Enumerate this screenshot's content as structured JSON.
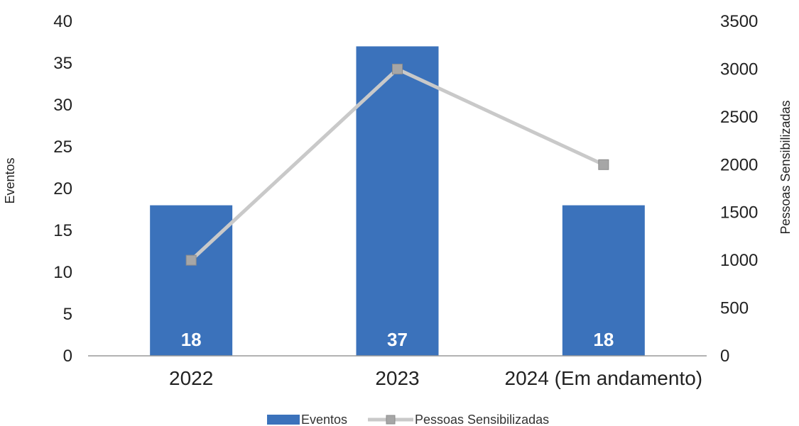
{
  "chart_data": {
    "type": "bar",
    "categories": [
      "2022",
      "2023",
      "2024 (Em andamento)"
    ],
    "series": [
      {
        "name": "Eventos",
        "type": "bar",
        "axis": "left",
        "values": [
          18,
          37,
          18
        ],
        "color": "#3b72bb",
        "data_labels": [
          "18",
          "37",
          "18"
        ]
      },
      {
        "name": "Pessoas Sensibilizadas",
        "type": "line",
        "axis": "right",
        "values": [
          1000,
          3000,
          2000
        ],
        "color": "#c9c9c9",
        "marker_color": "#a6a6a6"
      }
    ],
    "ylabel": "Eventos",
    "y2label": "Pessoas Sensibilizadas",
    "ylim": [
      0,
      40
    ],
    "y2lim": [
      0,
      3500
    ],
    "yticks": [
      "0",
      "5",
      "10",
      "15",
      "20",
      "25",
      "30",
      "35",
      "40"
    ],
    "y2ticks": [
      "0",
      "500",
      "1000",
      "1500",
      "2000",
      "2500",
      "3000",
      "3500"
    ],
    "grid": false,
    "legend_position": "bottom-center",
    "axis_color": "#999999"
  }
}
